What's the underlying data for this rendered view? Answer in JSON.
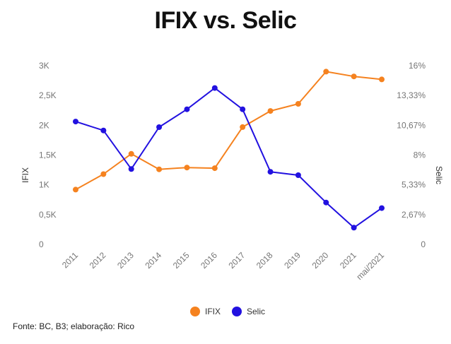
{
  "chart_data": {
    "type": "line",
    "title": "IFIX vs. Selic",
    "categories": [
      "2011",
      "2012",
      "2013",
      "2014",
      "2015",
      "2016",
      "2017",
      "2018",
      "2019",
      "2020",
      "2021",
      "mai/2021"
    ],
    "series": [
      {
        "name": "IFIX",
        "axis": "left",
        "color": "#F5821F",
        "values": [
          920,
          1180,
          1520,
          1260,
          1290,
          1280,
          1970,
          2240,
          2360,
          2900,
          2820,
          2770
        ]
      },
      {
        "name": "Selic",
        "axis": "right",
        "color": "#2211E0",
        "values": [
          11.0,
          10.2,
          6.75,
          10.5,
          12.1,
          14.0,
          12.1,
          6.5,
          6.2,
          3.75,
          1.5,
          3.25
        ]
      }
    ],
    "ylabel": "IFIX",
    "y2label": "Selic",
    "ylim": [
      0,
      3000
    ],
    "y2lim": [
      0,
      16
    ],
    "y_ticks": [
      "0",
      "0,5K",
      "1K",
      "1,5K",
      "2K",
      "2,5K",
      "3K"
    ],
    "y2_ticks": [
      "0",
      "2,67%",
      "5,33%",
      "8%",
      "10,67%",
      "13,33%",
      "16%"
    ],
    "grid": false,
    "legend_position": "bottom"
  },
  "source": "Fonte: BC, B3; elaboração: Rico"
}
